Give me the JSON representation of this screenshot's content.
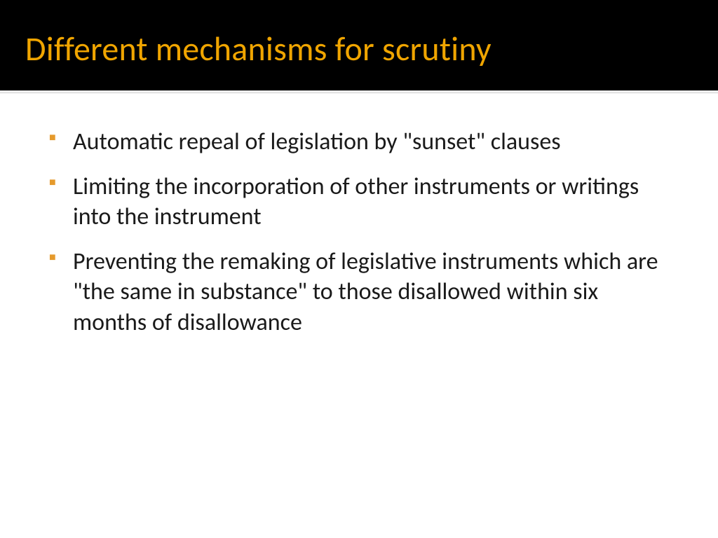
{
  "header": {
    "title": "Different mechanisms for scrutiny",
    "title_color": "#f0a500",
    "background_color": "#000000",
    "title_fontsize": 48
  },
  "divider": {
    "line_color": "#c9c9c9"
  },
  "body": {
    "background_color": "#ffffff",
    "text_color": "#1a1a1a",
    "bullet_color": "#e59a2c",
    "fontsize": 34,
    "items": [
      "Automatic repeal of legislation by \"sunset\" clauses",
      "Limiting the incorporation of other instruments or writings into the instrument",
      "Preventing the remaking of legislative instruments which are \"the same in substance\" to those disallowed within six months of disallowance"
    ]
  }
}
